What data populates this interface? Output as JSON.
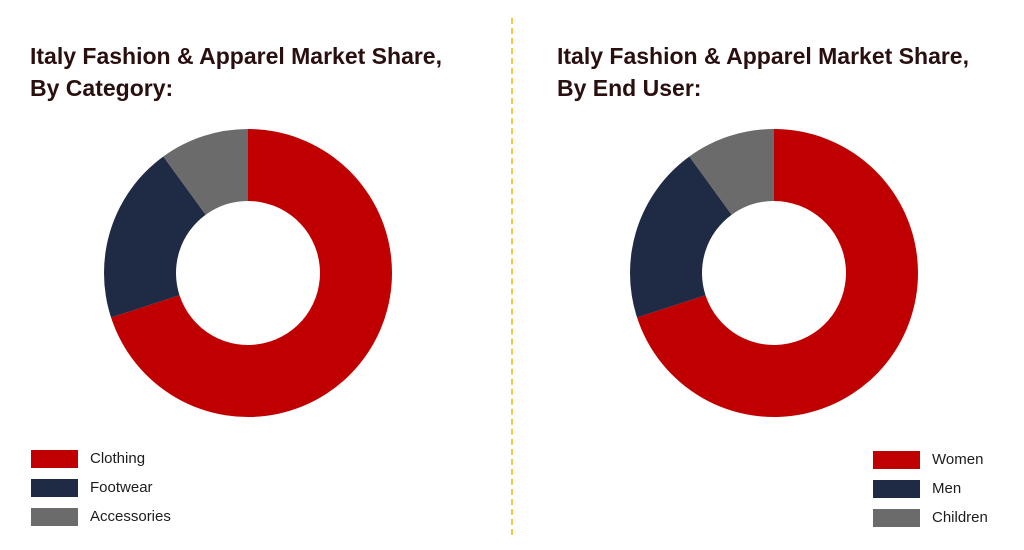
{
  "colors": {
    "red": "#c00000",
    "navy": "#1f2a44",
    "gray": "#6b6b6b",
    "divider": "#f5c842"
  },
  "charts": {
    "category": {
      "title_line1": "Italy Fashion & Apparel Market Share,",
      "title_line2": "By Category:",
      "legend": [
        "Clothing",
        "Footwear",
        "Accessories"
      ]
    },
    "end_user": {
      "title_line1": "Italy Fashion & Apparel Market Share,",
      "title_line2": "By End User:",
      "legend": [
        "Women",
        "Men",
        "Children"
      ]
    }
  },
  "chart_data": [
    {
      "type": "pie",
      "title": "Italy Fashion & Apparel Market Share, By Category:",
      "donut": true,
      "categories": [
        "Clothing",
        "Footwear",
        "Accessories"
      ],
      "values": [
        70,
        20,
        10
      ],
      "colors": [
        "#c00000",
        "#1f2a44",
        "#6b6b6b"
      ],
      "legend_position": "bottom-left"
    },
    {
      "type": "pie",
      "title": "Italy Fashion & Apparel Market Share, By End User:",
      "donut": true,
      "categories": [
        "Women",
        "Men",
        "Children"
      ],
      "values": [
        70,
        20,
        10
      ],
      "colors": [
        "#c00000",
        "#1f2a44",
        "#6b6b6b"
      ],
      "legend_position": "bottom-right"
    }
  ]
}
